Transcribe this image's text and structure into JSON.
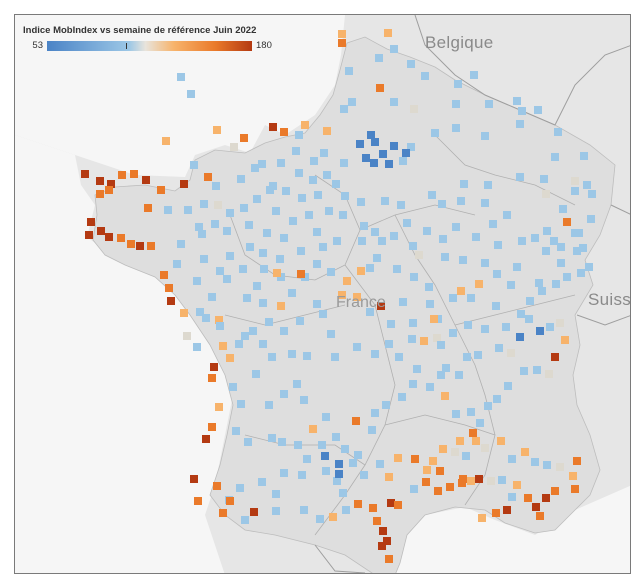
{
  "legend": {
    "title": "Indice MobIndex vs semaine de référence Juin 2022",
    "min_label": "53",
    "max_label": "180",
    "min": 53,
    "max": 180,
    "tick_value": 100
  },
  "labels": {
    "belgium": "Belgique",
    "france": "France",
    "switzerland": "Suiss"
  },
  "colors": {
    "low": "#4a83c6",
    "mid_low": "#9cc7e6",
    "neutral": "#ddd9cf",
    "mid_high": "#f7b36b",
    "high": "#ea7a2a",
    "very_high": "#b43a12"
  },
  "markers": [
    [
      "l",
      180,
      76
    ],
    [
      "l",
      190,
      93
    ],
    [
      "m",
      165,
      140
    ],
    [
      "m",
      216,
      129
    ],
    [
      "h",
      243,
      137
    ],
    [
      "vh",
      272,
      126
    ],
    [
      "h",
      283,
      131
    ],
    [
      "l",
      298,
      134
    ],
    [
      "m",
      326,
      130
    ],
    [
      "l",
      351,
      101
    ],
    [
      "l",
      343,
      108
    ],
    [
      "n",
      233,
      146
    ],
    [
      "l",
      240,
      178
    ],
    [
      "l",
      215,
      185
    ],
    [
      "l",
      193,
      164
    ],
    [
      "l",
      254,
      167
    ],
    [
      "l",
      261,
      163
    ],
    [
      "m",
      304,
      124
    ],
    [
      "l",
      348,
      70
    ],
    [
      "h",
      341,
      42
    ],
    [
      "m",
      341,
      33
    ],
    [
      "h",
      379,
      87
    ],
    [
      "l",
      393,
      101
    ],
    [
      "n",
      413,
      108
    ],
    [
      "l",
      410,
      63
    ],
    [
      "l",
      378,
      57
    ],
    [
      "l",
      393,
      48
    ],
    [
      "m",
      387,
      32
    ],
    [
      "l",
      424,
      75
    ],
    [
      "l",
      455,
      103
    ],
    [
      "l",
      457,
      83
    ],
    [
      "l",
      473,
      74
    ],
    [
      "l",
      488,
      103
    ],
    [
      "l",
      516,
      100
    ],
    [
      "l",
      521,
      110
    ],
    [
      "l",
      537,
      109
    ],
    [
      "l",
      557,
      131
    ],
    [
      "l",
      583,
      155
    ],
    [
      "l",
      554,
      156
    ],
    [
      "l",
      519,
      123
    ],
    [
      "l",
      484,
      135
    ],
    [
      "l",
      455,
      127
    ],
    [
      "l",
      434,
      132
    ],
    [
      "l",
      410,
      146
    ],
    [
      "l",
      402,
      160
    ],
    [
      "vl",
      393,
      145
    ],
    [
      "vl",
      374,
      141
    ],
    [
      "vl",
      382,
      153
    ],
    [
      "vl",
      365,
      157
    ],
    [
      "vl",
      373,
      162
    ],
    [
      "vl",
      388,
      163
    ],
    [
      "vl",
      405,
      152
    ],
    [
      "vl",
      359,
      143
    ],
    [
      "vl",
      370,
      134
    ],
    [
      "l",
      343,
      162
    ],
    [
      "l",
      323,
      152
    ],
    [
      "l",
      335,
      183
    ],
    [
      "l",
      344,
      195
    ],
    [
      "l",
      360,
      201
    ],
    [
      "l",
      384,
      200
    ],
    [
      "l",
      400,
      204
    ],
    [
      "l",
      406,
      222
    ],
    [
      "l",
      431,
      194
    ],
    [
      "l",
      441,
      203
    ],
    [
      "l",
      463,
      183
    ],
    [
      "l",
      487,
      184
    ],
    [
      "l",
      519,
      176
    ],
    [
      "l",
      543,
      178
    ],
    [
      "n",
      574,
      180
    ],
    [
      "l",
      586,
      184
    ],
    [
      "l",
      591,
      193
    ],
    [
      "l",
      574,
      190
    ],
    [
      "n",
      545,
      193
    ],
    [
      "l",
      562,
      208
    ],
    [
      "h",
      566,
      221
    ],
    [
      "l",
      578,
      232
    ],
    [
      "l",
      582,
      247
    ],
    [
      "l",
      553,
      240
    ],
    [
      "l",
      534,
      237
    ],
    [
      "l",
      506,
      214
    ],
    [
      "l",
      492,
      223
    ],
    [
      "l",
      484,
      202
    ],
    [
      "l",
      460,
      200
    ],
    [
      "l",
      455,
      226
    ],
    [
      "l",
      442,
      238
    ],
    [
      "l",
      426,
      230
    ],
    [
      "l",
      412,
      245
    ],
    [
      "l",
      393,
      235
    ],
    [
      "l",
      374,
      231
    ],
    [
      "l",
      363,
      225
    ],
    [
      "l",
      342,
      214
    ],
    [
      "l",
      328,
      210
    ],
    [
      "l",
      308,
      214
    ],
    [
      "l",
      292,
      220
    ],
    [
      "l",
      283,
      237
    ],
    [
      "l",
      266,
      232
    ],
    [
      "l",
      249,
      246
    ],
    [
      "l",
      229,
      255
    ],
    [
      "l",
      219,
      270
    ],
    [
      "l",
      203,
      258
    ],
    [
      "l",
      196,
      280
    ],
    [
      "l",
      176,
      263
    ],
    [
      "h",
      163,
      274
    ],
    [
      "h",
      168,
      287
    ],
    [
      "vh",
      170,
      300
    ],
    [
      "m",
      183,
      312
    ],
    [
      "l",
      205,
      317
    ],
    [
      "m",
      218,
      319
    ],
    [
      "l",
      246,
      297
    ],
    [
      "l",
      256,
      285
    ],
    [
      "l",
      262,
      302
    ],
    [
      "l",
      280,
      276
    ],
    [
      "m",
      276,
      272
    ],
    [
      "m",
      280,
      305
    ],
    [
      "l",
      268,
      321
    ],
    [
      "l",
      252,
      330
    ],
    [
      "l",
      238,
      343
    ],
    [
      "m",
      222,
      345
    ],
    [
      "m",
      229,
      357
    ],
    [
      "vh",
      213,
      366
    ],
    [
      "h",
      211,
      377
    ],
    [
      "l",
      232,
      386
    ],
    [
      "l",
      255,
      373
    ],
    [
      "l",
      271,
      356
    ],
    [
      "l",
      291,
      353
    ],
    [
      "l",
      306,
      355
    ],
    [
      "l",
      296,
      383
    ],
    [
      "l",
      303,
      399
    ],
    [
      "l",
      283,
      393
    ],
    [
      "l",
      268,
      404
    ],
    [
      "l",
      240,
      403
    ],
    [
      "m",
      218,
      406
    ],
    [
      "h",
      211,
      426
    ],
    [
      "vh",
      205,
      438
    ],
    [
      "l",
      235,
      430
    ],
    [
      "l",
      247,
      441
    ],
    [
      "l",
      271,
      437
    ],
    [
      "l",
      281,
      441
    ],
    [
      "l",
      297,
      444
    ],
    [
      "l",
      306,
      458
    ],
    [
      "l",
      321,
      444
    ],
    [
      "l",
      335,
      436
    ],
    [
      "l",
      344,
      448
    ],
    [
      "l",
      357,
      454
    ],
    [
      "l",
      336,
      480
    ],
    [
      "l",
      342,
      492
    ],
    [
      "vl",
      338,
      473
    ],
    [
      "l",
      325,
      470
    ],
    [
      "l",
      301,
      474
    ],
    [
      "l",
      283,
      472
    ],
    [
      "l",
      275,
      493
    ],
    [
      "l",
      261,
      481
    ],
    [
      "l",
      239,
      487
    ],
    [
      "l",
      228,
      499
    ],
    [
      "h",
      229,
      500
    ],
    [
      "h",
      216,
      485
    ],
    [
      "vh",
      193,
      478
    ],
    [
      "h",
      197,
      500
    ],
    [
      "h",
      222,
      512
    ],
    [
      "l",
      244,
      519
    ],
    [
      "vh",
      253,
      511
    ],
    [
      "l",
      275,
      510
    ],
    [
      "l",
      303,
      509
    ],
    [
      "l",
      319,
      518
    ],
    [
      "m",
      332,
      516
    ],
    [
      "l",
      345,
      509
    ],
    [
      "h",
      357,
      503
    ],
    [
      "h",
      372,
      507
    ],
    [
      "vh",
      390,
      502
    ],
    [
      "h",
      376,
      520
    ],
    [
      "vh",
      382,
      530
    ],
    [
      "vh",
      386,
      540
    ],
    [
      "vh",
      381,
      545
    ],
    [
      "h",
      388,
      558
    ],
    [
      "h",
      397,
      504
    ],
    [
      "l",
      413,
      488
    ],
    [
      "h",
      425,
      481
    ],
    [
      "h",
      437,
      490
    ],
    [
      "h",
      449,
      486
    ],
    [
      "h",
      461,
      482
    ],
    [
      "m",
      470,
      480
    ],
    [
      "vh",
      478,
      478
    ],
    [
      "n",
      490,
      480
    ],
    [
      "l",
      501,
      479
    ],
    [
      "m",
      516,
      484
    ],
    [
      "h",
      527,
      497
    ],
    [
      "vh",
      535,
      506
    ],
    [
      "vh",
      545,
      497
    ],
    [
      "h",
      554,
      490
    ],
    [
      "h",
      539,
      515
    ],
    [
      "vh",
      506,
      509
    ],
    [
      "h",
      495,
      512
    ],
    [
      "m",
      481,
      517
    ],
    [
      "l",
      511,
      496
    ],
    [
      "h",
      576,
      460
    ],
    [
      "h",
      574,
      488
    ],
    [
      "m",
      572,
      475
    ],
    [
      "n",
      559,
      466
    ],
    [
      "l",
      546,
      464
    ],
    [
      "l",
      534,
      461
    ],
    [
      "m",
      524,
      451
    ],
    [
      "l",
      511,
      458
    ],
    [
      "m",
      500,
      440
    ],
    [
      "n",
      484,
      447
    ],
    [
      "m",
      475,
      440
    ],
    [
      "m",
      459,
      440
    ],
    [
      "n",
      454,
      451
    ],
    [
      "m",
      442,
      448
    ],
    [
      "m",
      432,
      460
    ],
    [
      "h",
      439,
      470
    ],
    [
      "m",
      426,
      469
    ],
    [
      "h",
      414,
      458
    ],
    [
      "m",
      397,
      457
    ],
    [
      "m",
      388,
      476
    ],
    [
      "l",
      379,
      463
    ],
    [
      "l",
      363,
      474
    ],
    [
      "l",
      352,
      462
    ],
    [
      "vl",
      338,
      463
    ],
    [
      "vl",
      324,
      455
    ],
    [
      "m",
      312,
      428
    ],
    [
      "l",
      325,
      416
    ],
    [
      "h",
      355,
      420
    ],
    [
      "l",
      371,
      429
    ],
    [
      "l",
      374,
      412
    ],
    [
      "l",
      385,
      404
    ],
    [
      "l",
      401,
      396
    ],
    [
      "l",
      412,
      383
    ],
    [
      "l",
      429,
      386
    ],
    [
      "m",
      444,
      395
    ],
    [
      "l",
      455,
      413
    ],
    [
      "l",
      470,
      411
    ],
    [
      "l",
      479,
      422
    ],
    [
      "h",
      472,
      432
    ],
    [
      "l",
      465,
      455
    ],
    [
      "h",
      462,
      478
    ],
    [
      "l",
      487,
      405
    ],
    [
      "l",
      496,
      398
    ],
    [
      "l",
      507,
      385
    ],
    [
      "l",
      523,
      370
    ],
    [
      "l",
      536,
      369
    ],
    [
      "n",
      548,
      373
    ],
    [
      "vh",
      554,
      356
    ],
    [
      "m",
      564,
      339
    ],
    [
      "n",
      559,
      322
    ],
    [
      "l",
      549,
      326
    ],
    [
      "vl",
      539,
      330
    ],
    [
      "l",
      528,
      318
    ],
    [
      "vl",
      519,
      336
    ],
    [
      "n",
      510,
      352
    ],
    [
      "l",
      498,
      347
    ],
    [
      "l",
      477,
      354
    ],
    [
      "l",
      466,
      356
    ],
    [
      "l",
      458,
      374
    ],
    [
      "l",
      445,
      367
    ],
    [
      "l",
      440,
      374
    ],
    [
      "n",
      436,
      337
    ],
    [
      "m",
      423,
      340
    ],
    [
      "l",
      411,
      338
    ],
    [
      "l",
      416,
      368
    ],
    [
      "l",
      398,
      356
    ],
    [
      "l",
      388,
      343
    ],
    [
      "l",
      374,
      353
    ],
    [
      "l",
      356,
      346
    ],
    [
      "l",
      334,
      356
    ],
    [
      "l",
      330,
      333
    ],
    [
      "l",
      322,
      313
    ],
    [
      "m",
      341,
      294
    ],
    [
      "m",
      356,
      296
    ],
    [
      "l",
      369,
      311
    ],
    [
      "vh",
      380,
      305
    ],
    [
      "l",
      390,
      323
    ],
    [
      "l",
      402,
      301
    ],
    [
      "l",
      412,
      322
    ],
    [
      "l",
      429,
      303
    ],
    [
      "l",
      437,
      318
    ],
    [
      "l",
      452,
      297
    ],
    [
      "m",
      460,
      290
    ],
    [
      "l",
      470,
      297
    ],
    [
      "m",
      478,
      283
    ],
    [
      "l",
      495,
      305
    ],
    [
      "l",
      510,
      284
    ],
    [
      "l",
      516,
      266
    ],
    [
      "l",
      538,
      282
    ],
    [
      "l",
      555,
      283
    ],
    [
      "l",
      566,
      276
    ],
    [
      "l",
      580,
      272
    ],
    [
      "l",
      588,
      266
    ],
    [
      "l",
      576,
      250
    ],
    [
      "l",
      541,
      290
    ],
    [
      "l",
      529,
      300
    ],
    [
      "l",
      520,
      313
    ],
    [
      "l",
      505,
      326
    ],
    [
      "l",
      484,
      328
    ],
    [
      "l",
      467,
      324
    ],
    [
      "l",
      452,
      332
    ],
    [
      "l",
      440,
      344
    ],
    [
      "m",
      433,
      318
    ],
    [
      "l",
      428,
      286
    ],
    [
      "l",
      413,
      276
    ],
    [
      "l",
      396,
      268
    ],
    [
      "l",
      376,
      257
    ],
    [
      "l",
      369,
      267
    ],
    [
      "m",
      360,
      270
    ],
    [
      "m",
      346,
      280
    ],
    [
      "l",
      330,
      271
    ],
    [
      "l",
      316,
      263
    ],
    [
      "l",
      300,
      250
    ],
    [
      "l",
      279,
      258
    ],
    [
      "l",
      263,
      268
    ],
    [
      "l",
      242,
      268
    ],
    [
      "l",
      226,
      278
    ],
    [
      "l",
      211,
      296
    ],
    [
      "l",
      199,
      311
    ],
    [
      "n",
      186,
      335
    ],
    [
      "l",
      196,
      346
    ],
    [
      "l",
      219,
      325
    ],
    [
      "l",
      244,
      335
    ],
    [
      "l",
      262,
      343
    ],
    [
      "l",
      283,
      330
    ],
    [
      "l",
      299,
      320
    ],
    [
      "l",
      316,
      303
    ],
    [
      "l",
      304,
      276
    ],
    [
      "vh",
      84,
      173
    ],
    [
      "vh",
      99,
      180
    ],
    [
      "vh",
      110,
      183
    ],
    [
      "h",
      121,
      174
    ],
    [
      "h",
      133,
      173
    ],
    [
      "vh",
      145,
      179
    ],
    [
      "h",
      160,
      189
    ],
    [
      "vh",
      183,
      183
    ],
    [
      "h",
      207,
      176
    ],
    [
      "h",
      108,
      189
    ],
    [
      "h",
      99,
      193
    ],
    [
      "vh",
      90,
      221
    ],
    [
      "vh",
      100,
      230
    ],
    [
      "vh",
      88,
      234
    ],
    [
      "vh",
      108,
      236
    ],
    [
      "h",
      120,
      237
    ],
    [
      "h",
      130,
      243
    ],
    [
      "vh",
      139,
      245
    ],
    [
      "h",
      150,
      245
    ],
    [
      "h",
      147,
      207
    ],
    [
      "l",
      167,
      209
    ],
    [
      "l",
      187,
      209
    ],
    [
      "l",
      203,
      203
    ],
    [
      "n",
      217,
      204
    ],
    [
      "l",
      229,
      212
    ],
    [
      "l",
      243,
      207
    ],
    [
      "l",
      256,
      198
    ],
    [
      "l",
      272,
      185
    ],
    [
      "l",
      285,
      190
    ],
    [
      "l",
      301,
      197
    ],
    [
      "l",
      317,
      194
    ],
    [
      "l",
      298,
      172
    ],
    [
      "l",
      312,
      179
    ],
    [
      "l",
      326,
      174
    ],
    [
      "l",
      280,
      162
    ],
    [
      "l",
      295,
      150
    ],
    [
      "l",
      313,
      160
    ],
    [
      "l",
      275,
      210
    ],
    [
      "l",
      248,
      224
    ],
    [
      "l",
      269,
      189
    ],
    [
      "l",
      262,
      252
    ],
    [
      "h",
      300,
      273
    ],
    [
      "l",
      291,
      292
    ],
    [
      "l",
      180,
      243
    ],
    [
      "l",
      201,
      233
    ],
    [
      "l",
      198,
      226
    ],
    [
      "l",
      214,
      223
    ],
    [
      "l",
      226,
      230
    ],
    [
      "l",
      316,
      231
    ],
    [
      "l",
      322,
      246
    ],
    [
      "l",
      336,
      240
    ],
    [
      "l",
      361,
      240
    ],
    [
      "l",
      381,
      240
    ],
    [
      "n",
      418,
      254
    ],
    [
      "l",
      444,
      256
    ],
    [
      "l",
      462,
      259
    ],
    [
      "l",
      484,
      262
    ],
    [
      "l",
      496,
      273
    ],
    [
      "l",
      475,
      236
    ],
    [
      "l",
      497,
      244
    ],
    [
      "l",
      521,
      240
    ],
    [
      "l",
      546,
      230
    ],
    [
      "l",
      560,
      246
    ],
    [
      "l",
      574,
      232
    ],
    [
      "l",
      590,
      218
    ],
    [
      "l",
      560,
      262
    ],
    [
      "l",
      545,
      250
    ]
  ]
}
